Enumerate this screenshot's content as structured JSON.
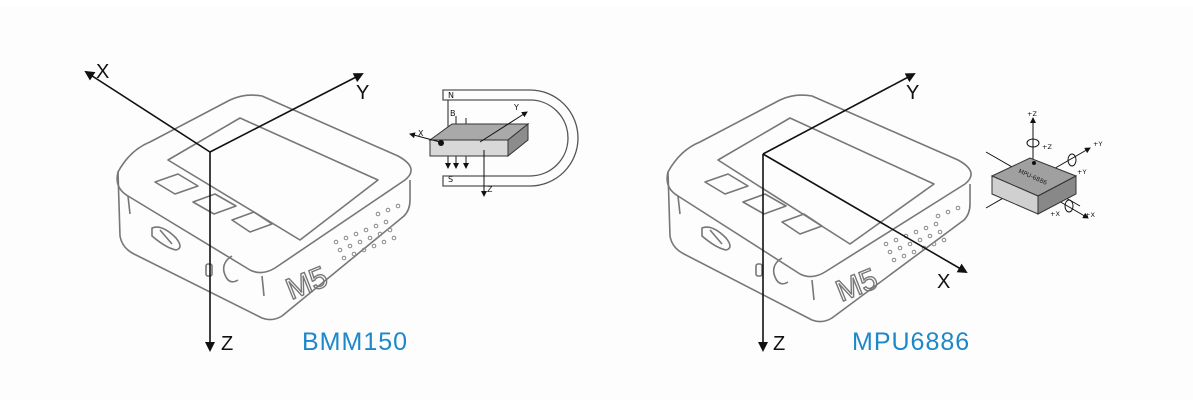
{
  "accent_color": "#1d88c9",
  "left": {
    "caption": "BMM150",
    "axes": {
      "x": "X",
      "y": "Y",
      "z": "Z"
    },
    "inset_labels": {
      "n": "N",
      "b": "B",
      "s": "S",
      "x": "X",
      "y": "Y",
      "z": "Z"
    },
    "device_logo": "M5"
  },
  "right": {
    "caption": "MPU6886",
    "axes": {
      "y": "Y",
      "x": "X",
      "z": "Z"
    },
    "chip_label": "MPU-6886",
    "inset_labels": {
      "pz": "+Z",
      "pz2": "+Z",
      "py": "+Y",
      "py2": "+Y",
      "px": "+X",
      "px2": "+X"
    },
    "device_logo": "M5"
  }
}
